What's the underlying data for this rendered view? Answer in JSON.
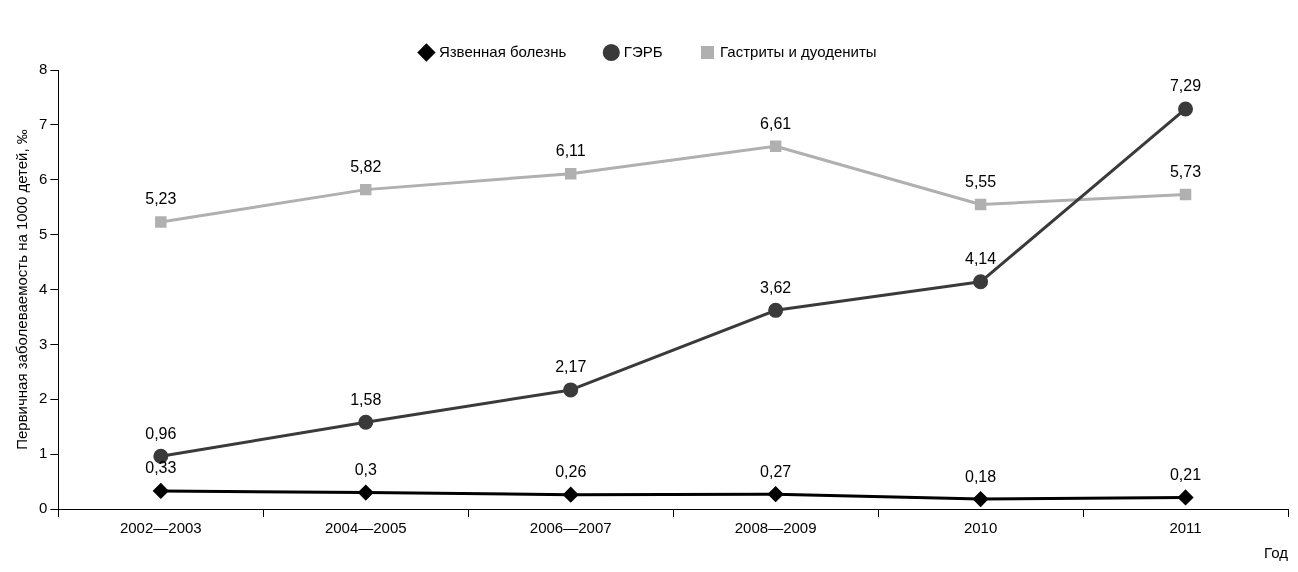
{
  "chart_data": {
    "type": "line",
    "xlabel": "Год",
    "ylabel": "Первичная заболеваемость на 1000 детей, ‰",
    "categories": [
      "2002—2003",
      "2004—2005",
      "2006—2007",
      "2008—2009",
      "2010",
      "2011"
    ],
    "ylim": [
      0,
      8
    ],
    "yticks": [
      0,
      1,
      2,
      3,
      4,
      5,
      6,
      7,
      8
    ],
    "grid": false,
    "legend": "top",
    "line_style": "solid",
    "series": [
      {
        "name": "Язвенная болезнь",
        "color": "#000000",
        "marker": "diamond",
        "values": [
          0.33,
          0.3,
          0.26,
          0.27,
          0.18,
          0.21
        ],
        "value_labels": [
          "0,33",
          "0,3",
          "0,26",
          "0,27",
          "0,18",
          "0,21"
        ]
      },
      {
        "name": "ГЭРБ",
        "color": "#3a3a3a",
        "marker": "circle",
        "values": [
          0.96,
          1.58,
          2.17,
          3.62,
          4.14,
          7.29
        ],
        "value_labels": [
          "0,96",
          "1,58",
          "2,17",
          "3,62",
          "4,14",
          "7,29"
        ]
      },
      {
        "name": "Гастриты и дуодениты",
        "color": "#b0b0b0",
        "marker": "square",
        "values": [
          5.23,
          5.82,
          6.11,
          6.61,
          5.55,
          5.73
        ],
        "value_labels": [
          "5,23",
          "5,82",
          "6,11",
          "6,61",
          "5,55",
          "5,73"
        ]
      }
    ]
  }
}
